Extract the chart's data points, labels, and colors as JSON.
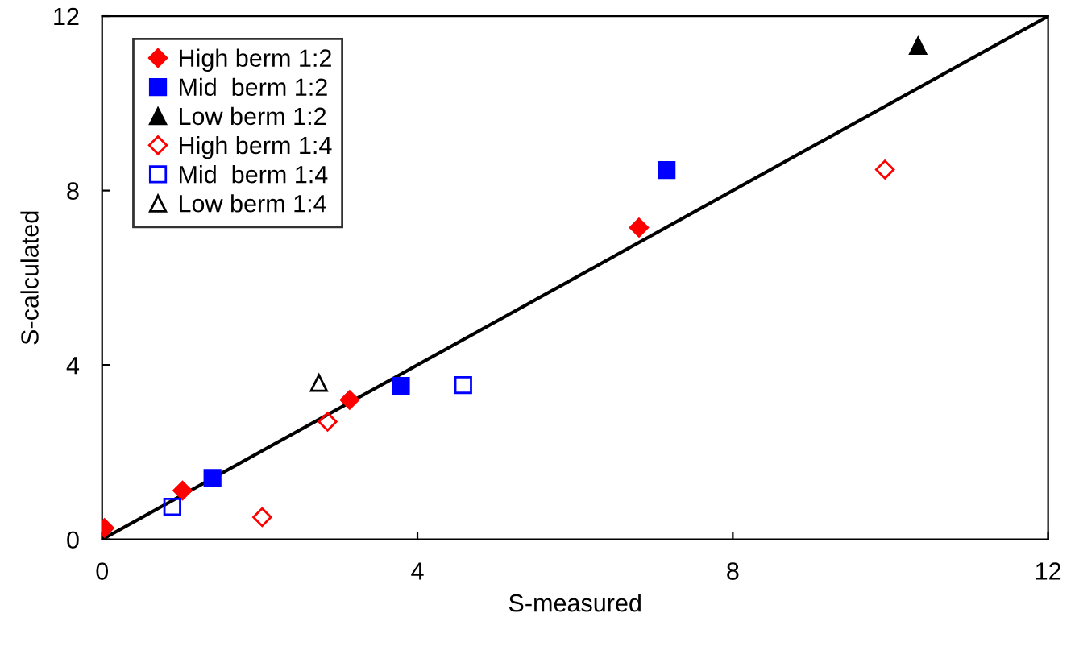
{
  "chart_data": {
    "type": "scatter",
    "xlabel": "S-measured",
    "ylabel": "S-calculated",
    "xlim": [
      0,
      12
    ],
    "ylim": [
      0,
      12
    ],
    "xticks": [
      0,
      4,
      8,
      12
    ],
    "yticks": [
      0,
      4,
      8,
      12
    ],
    "grid": false,
    "legend": "top left",
    "series": [
      {
        "name": "High berm 1:2",
        "color": "#ff0000",
        "marker": "diamond",
        "x": [
          0.03,
          1.02,
          3.14,
          6.81
        ],
        "values": [
          0.26,
          1.12,
          3.2,
          7.15
        ]
      },
      {
        "name": "Mid  berm 1:2",
        "color": "#0000ff",
        "marker": "square",
        "x": [
          1.4,
          3.79,
          7.16
        ],
        "values": [
          1.41,
          3.52,
          8.47
        ]
      },
      {
        "name": "Low berm 1:2",
        "color": "#000000",
        "marker": "triangle",
        "x": [
          10.35
        ],
        "values": [
          11.32
        ]
      },
      {
        "name": "High berm 1:4",
        "color": "#ff0000",
        "marker": "diamond",
        "x": [
          2.03,
          2.86,
          9.93
        ],
        "values": [
          0.51,
          2.7,
          8.48
        ]
      },
      {
        "name": "Mid  berm 1:4",
        "color": "#0000ff",
        "marker": "square",
        "x": [
          0.89,
          4.58
        ],
        "values": [
          0.75,
          3.54
        ]
      },
      {
        "name": "Low berm 1:4",
        "color": "#000000",
        "marker": "triangle",
        "x": [
          2.75
        ],
        "values": [
          3.59
        ]
      },
      {
        "type": "line",
        "color": "#000000",
        "line_style": "solid",
        "marker": "none",
        "x": [
          0,
          12
        ],
        "values": [
          0,
          12
        ]
      }
    ]
  }
}
